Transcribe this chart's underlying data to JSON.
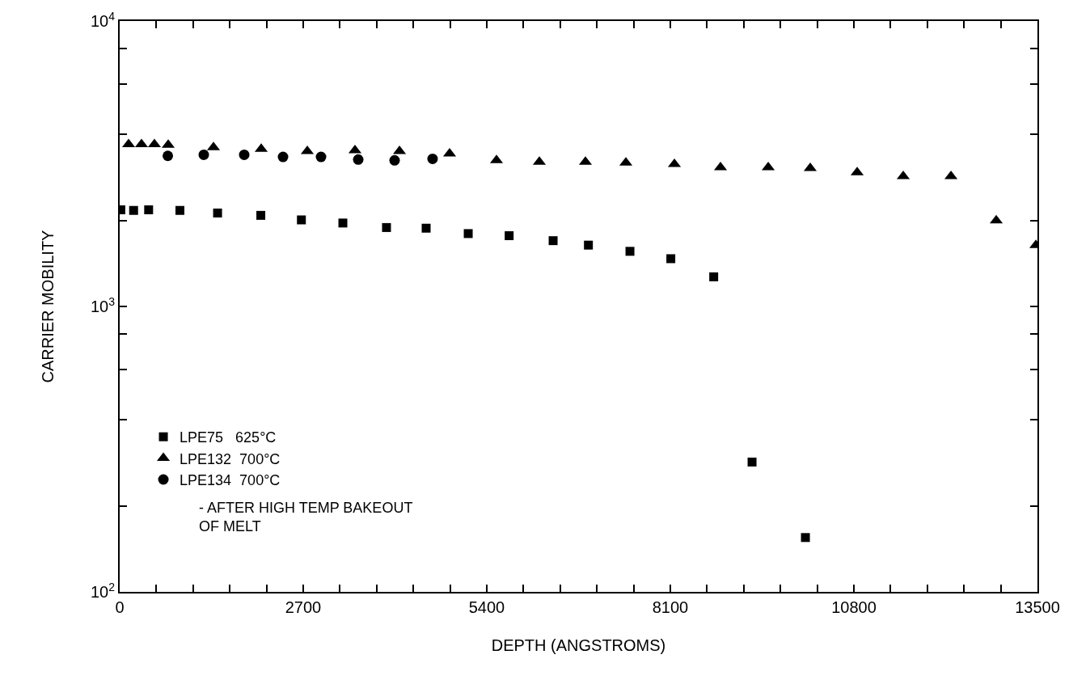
{
  "chart_data": {
    "type": "scatter",
    "xlabel": "DEPTH (ANGSTROMS)",
    "ylabel": "CARRIER MOBILITY",
    "xlim": [
      0,
      13500
    ],
    "xticks": [
      0,
      {
        "value": 540,
        "label": null
      },
      {
        "value": 1080,
        "label": null
      },
      {
        "value": 1620,
        "label": null
      },
      {
        "value": 2160,
        "label": null
      },
      2700,
      {
        "value": 3240,
        "label": null
      },
      {
        "value": 3780,
        "label": null
      },
      {
        "value": 4320,
        "label": null
      },
      {
        "value": 4860,
        "label": null
      },
      5400,
      {
        "value": 5940,
        "label": null
      },
      {
        "value": 6480,
        "label": null
      },
      {
        "value": 7020,
        "label": null
      },
      {
        "value": 7560,
        "label": null
      },
      8100,
      {
        "value": 8640,
        "label": null
      },
      {
        "value": 9180,
        "label": null
      },
      {
        "value": 9720,
        "label": null
      },
      {
        "value": 10260,
        "label": null
      },
      10800,
      {
        "value": 11340,
        "label": null
      },
      {
        "value": 11880,
        "label": null
      },
      {
        "value": 12420,
        "label": null
      },
      {
        "value": 12960,
        "label": null
      },
      13500
    ],
    "ylim": [
      100,
      10000
    ],
    "log": true,
    "yticks": [
      {
        "value": 100,
        "label": "10$^{2}$"
      },
      {
        "value": 200,
        "label": null
      },
      {
        "value": 400,
        "label": null
      },
      {
        "value": 600,
        "label": null
      },
      {
        "value": 800,
        "label": null
      },
      {
        "value": 1000,
        "label": "10$^{3}$"
      },
      {
        "value": 2000,
        "label": null
      },
      {
        "value": 4000,
        "label": null
      },
      {
        "value": 6000,
        "label": null
      },
      {
        "value": 8000,
        "label": null
      },
      {
        "value": 10000,
        "label": "10$^{4}$"
      }
    ],
    "legend": "bottom left",
    "annotations": [
      "- AFTER HIGH TEMP BAKEOUT\nOF MELT"
    ],
    "series": [
      {
        "name": "LPE75   625°C",
        "color": "#000000",
        "marker": "square",
        "x": [
          17,
          205,
          426,
          886,
          1440,
          2076,
          2673,
          3283,
          3925,
          4508,
          5127,
          5729,
          6376,
          6895,
          7506,
          8107,
          8738,
          9302,
          10087
        ],
        "values": [
          2180,
          2170,
          2180,
          2170,
          2125,
          2085,
          2010,
          1960,
          1890,
          1880,
          1800,
          1770,
          1700,
          1640,
          1560,
          1470,
          1270,
          285,
          155
        ]
      },
      {
        "name": "LPE132  700°C",
        "color": "#000000",
        "marker": "triangle",
        "x": [
          131,
          321,
          511,
          714,
          1380,
          2082,
          2760,
          3461,
          4116,
          4853,
          5543,
          6173,
          6851,
          7446,
          8160,
          8838,
          9540,
          10158,
          10848,
          11526,
          12228,
          12894,
          13477
        ],
        "values": [
          3700,
          3700,
          3700,
          3680,
          3610,
          3560,
          3500,
          3520,
          3500,
          3430,
          3250,
          3210,
          3210,
          3190,
          3150,
          3070,
          3070,
          3050,
          2950,
          2860,
          2860,
          2000,
          1640
        ]
      },
      {
        "name": "LPE134  700°C",
        "color": "#000000",
        "marker": "circle",
        "x": [
          708,
          1237,
          1832,
          2403,
          2962,
          3509,
          4044,
          4603
        ],
        "values": [
          3370,
          3400,
          3400,
          3340,
          3340,
          3270,
          3250,
          3290
        ]
      }
    ]
  }
}
